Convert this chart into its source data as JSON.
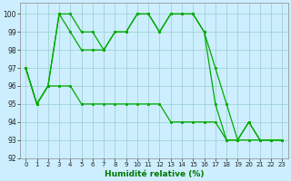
{
  "x": [
    0,
    1,
    2,
    3,
    4,
    5,
    6,
    7,
    8,
    9,
    10,
    11,
    12,
    13,
    14,
    15,
    16,
    17,
    18,
    19,
    20,
    21,
    22,
    23
  ],
  "line1": [
    97,
    95,
    96,
    100,
    100,
    99,
    99,
    98,
    99,
    99,
    100,
    100,
    99,
    100,
    100,
    100,
    99,
    97,
    95,
    93,
    94,
    93,
    93,
    93
  ],
  "line2": [
    97,
    95,
    96,
    100,
    99,
    98,
    98,
    98,
    99,
    99,
    100,
    100,
    99,
    100,
    100,
    100,
    99,
    95,
    93,
    93,
    94,
    93,
    93,
    93
  ],
  "line3": [
    97,
    95,
    96,
    96,
    96,
    95,
    95,
    95,
    95,
    95,
    95,
    95,
    95,
    94,
    94,
    94,
    94,
    94,
    93,
    93,
    93,
    93,
    93,
    93
  ],
  "line_color": "#00aa00",
  "background_color": "#cceeff",
  "grid_color": "#99cccc",
  "xlabel": "Humidité relative (%)",
  "ylim": [
    92,
    100.6
  ],
  "yticks": [
    92,
    93,
    94,
    95,
    96,
    97,
    98,
    99,
    100
  ],
  "xlim": [
    -0.5,
    23.5
  ],
  "xticks": [
    0,
    1,
    2,
    3,
    4,
    5,
    6,
    7,
    8,
    9,
    10,
    11,
    12,
    13,
    14,
    15,
    16,
    17,
    18,
    19,
    20,
    21,
    22,
    23
  ],
  "xlabel_color": "#007700",
  "tick_color": "#222222",
  "marker_size": 2.0,
  "line_width": 0.9
}
